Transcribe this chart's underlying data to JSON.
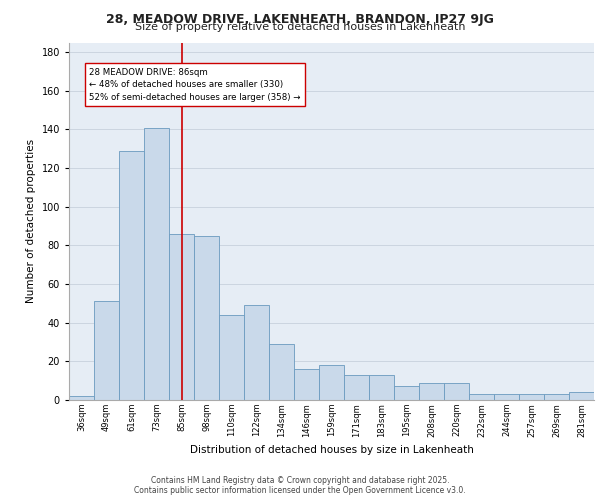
{
  "title1": "28, MEADOW DRIVE, LAKENHEATH, BRANDON, IP27 9JG",
  "title2": "Size of property relative to detached houses in Lakenheath",
  "xlabel": "Distribution of detached houses by size in Lakenheath",
  "ylabel": "Number of detached properties",
  "categories": [
    "36sqm",
    "49sqm",
    "61sqm",
    "73sqm",
    "85sqm",
    "98sqm",
    "110sqm",
    "122sqm",
    "134sqm",
    "146sqm",
    "159sqm",
    "171sqm",
    "183sqm",
    "195sqm",
    "208sqm",
    "220sqm",
    "232sqm",
    "244sqm",
    "257sqm",
    "269sqm",
    "281sqm"
  ],
  "values": [
    2,
    51,
    129,
    141,
    86,
    85,
    44,
    49,
    29,
    16,
    18,
    13,
    13,
    7,
    9,
    9,
    3,
    3,
    3,
    3,
    4
  ],
  "bar_color": "#c9d9ea",
  "bar_edge_color": "#6a9abf",
  "grid_color": "#ccd5e0",
  "bg_color": "#e6edf5",
  "vline_x_index": 4,
  "vline_color": "#cc0000",
  "annotation_text": "28 MEADOW DRIVE: 86sqm\n← 48% of detached houses are smaller (330)\n52% of semi-detached houses are larger (358) →",
  "ylim": [
    0,
    185
  ],
  "yticks": [
    0,
    20,
    40,
    60,
    80,
    100,
    120,
    140,
    160,
    180
  ],
  "footer1": "Contains HM Land Registry data © Crown copyright and database right 2025.",
  "footer2": "Contains public sector information licensed under the Open Government Licence v3.0."
}
